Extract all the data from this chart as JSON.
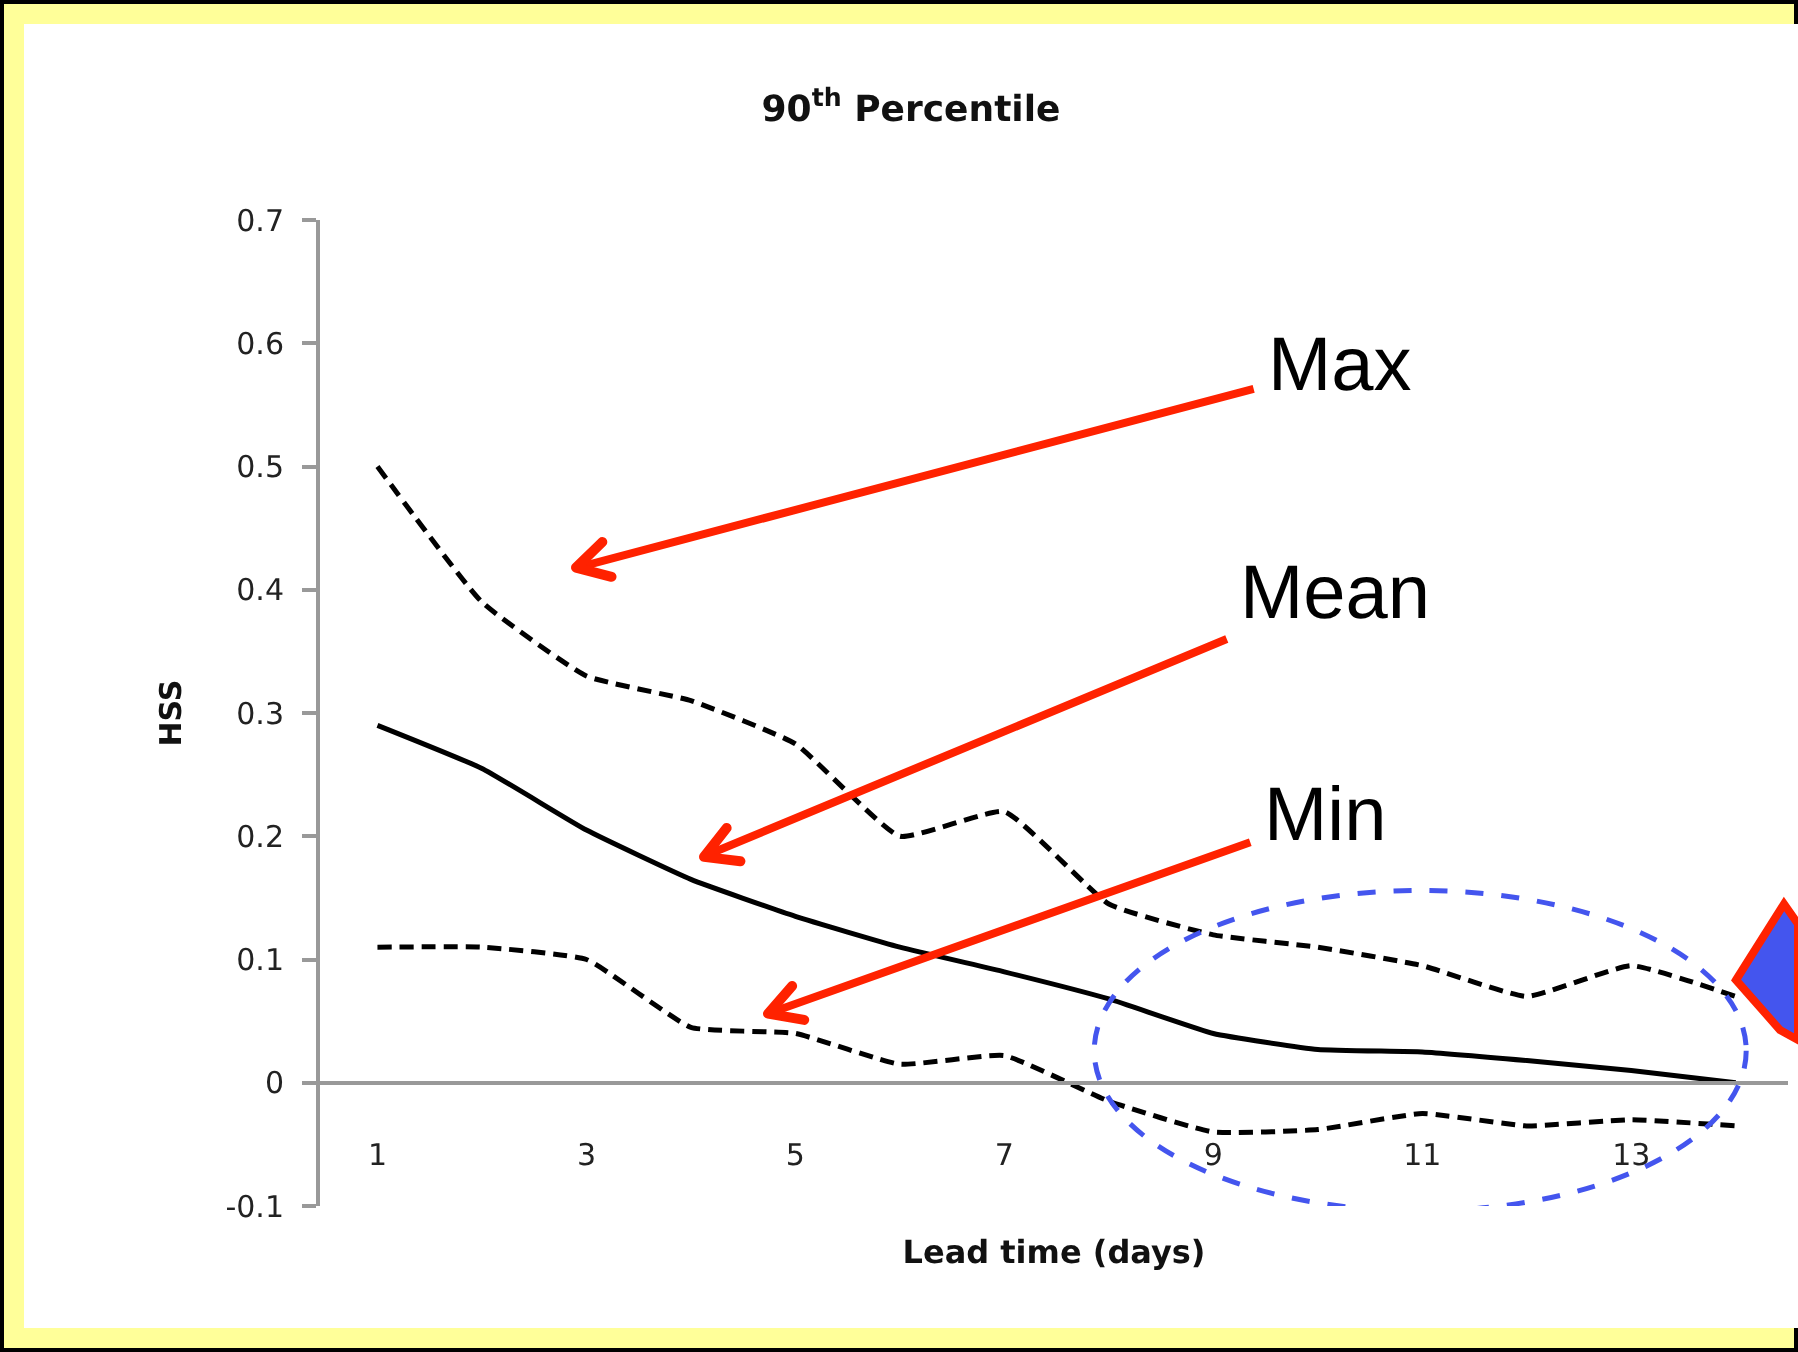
{
  "chart_data": {
    "type": "line",
    "title": "90$^{th}$ Percentile",
    "xlabel": "Lead time (days)",
    "ylabel": "HSS",
    "x": [
      1,
      2,
      3,
      4,
      5,
      6,
      7,
      8,
      9,
      10,
      11,
      12,
      13,
      14
    ],
    "series": [
      {
        "name": "Max",
        "color": "#000000",
        "line_style": "dashed",
        "values": [
          0.5,
          0.39,
          0.33,
          0.31,
          0.275,
          0.2,
          0.22,
          0.145,
          0.12,
          0.11,
          0.095,
          0.07,
          0.095,
          0.07
        ]
      },
      {
        "name": "Mean",
        "color": "#000000",
        "line_style": "solid",
        "values": [
          0.29,
          0.255,
          0.205,
          0.165,
          0.135,
          0.11,
          0.09,
          0.068,
          0.04,
          0.027,
          0.025,
          0.018,
          0.01,
          0.0
        ]
      },
      {
        "name": "Min",
        "color": "#000000",
        "line_style": "dashed",
        "values": [
          0.11,
          0.11,
          0.1,
          0.045,
          0.04,
          0.015,
          0.022,
          -0.015,
          -0.04,
          -0.038,
          -0.025,
          -0.035,
          -0.03,
          -0.035
        ]
      }
    ],
    "xlim": [
      0.45,
      14.5
    ],
    "xticks": [
      1,
      3,
      5,
      7,
      9,
      11,
      13
    ],
    "ylim": [
      -0.1,
      0.7
    ],
    "yticks": [
      -0.1,
      0,
      0.1,
      0.2,
      0.3,
      0.4,
      0.5,
      0.6,
      0.7
    ],
    "grid": false,
    "legend": false,
    "marker": "none"
  }
}
